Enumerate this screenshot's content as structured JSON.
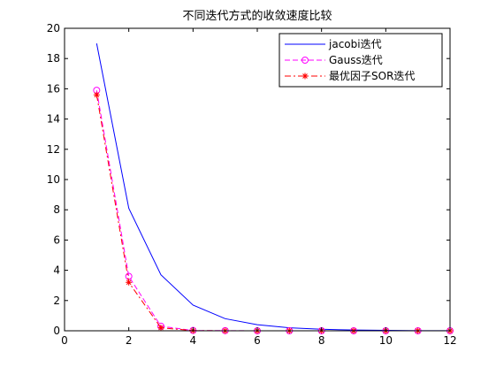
{
  "chart_data": {
    "type": "line",
    "title": "不同迭代方式的收敛速度比较",
    "xlabel": "",
    "ylabel": "",
    "xlim": [
      0,
      12
    ],
    "ylim": [
      0,
      20
    ],
    "xticks": [
      0,
      2,
      4,
      6,
      8,
      10,
      12
    ],
    "yticks": [
      0,
      2,
      4,
      6,
      8,
      10,
      12,
      14,
      16,
      18,
      20
    ],
    "grid": false,
    "legend": {
      "position": "top-right"
    },
    "x": [
      1,
      2,
      3,
      4,
      5,
      6,
      7,
      8,
      9,
      10,
      11,
      12
    ],
    "series": [
      {
        "name": "jacobi迭代",
        "color": "#0000ff",
        "line_style": "solid",
        "marker": "none",
        "values": [
          19.0,
          8.1,
          3.7,
          1.7,
          0.8,
          0.4,
          0.2,
          0.1,
          0.05,
          0.03,
          0.01,
          0.01
        ]
      },
      {
        "name": "Gauss迭代",
        "color": "#ff00ff",
        "line_style": "dashed",
        "marker": "circle",
        "values": [
          15.9,
          3.6,
          0.3,
          0.02,
          0.01,
          0.0,
          0.0,
          0.0,
          0.0,
          0.0,
          0.0,
          0.0
        ]
      },
      {
        "name": "最优因子SOR迭代",
        "color": "#ff0000",
        "line_style": "dashdot",
        "marker": "star",
        "values": [
          15.6,
          3.2,
          0.2,
          0.01,
          0.0,
          0.0,
          0.0,
          0.0,
          0.0,
          0.0,
          0.0,
          0.0
        ]
      }
    ]
  }
}
